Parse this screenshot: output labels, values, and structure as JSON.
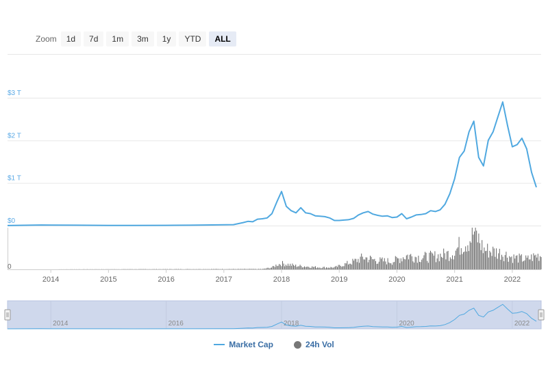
{
  "zoom": {
    "label": "Zoom",
    "buttons": [
      "1d",
      "7d",
      "1m",
      "3m",
      "1y",
      "YTD",
      "ALL"
    ],
    "active": "ALL"
  },
  "colors": {
    "market_cap": "#4fa8e0",
    "volume": "#666666",
    "navigator_fill": "#cfd8ec",
    "axis_label": "#5aa9e6"
  },
  "legend": {
    "market_cap": "Market Cap",
    "volume": "24h Vol"
  },
  "chart_data": {
    "type": "line",
    "y_axis": {
      "ticks": [
        0,
        1,
        2,
        3
      ],
      "tick_labels": [
        "$0",
        "$1 T",
        "$2 T",
        "$3 T"
      ],
      "ylim": [
        0,
        3.1
      ]
    },
    "x_axis": {
      "range": [
        "2013-04",
        "2022-06"
      ],
      "tick_labels": [
        "2014",
        "2015",
        "2016",
        "2017",
        "2018",
        "2019",
        "2020",
        "2021",
        "2022"
      ]
    },
    "volume_axis": {
      "tick_labels": [
        "0"
      ]
    },
    "navigator": {
      "tick_labels": [
        "2014",
        "2016",
        "2018",
        "2020",
        "2022"
      ]
    },
    "series": [
      {
        "name": "Market Cap",
        "unit": "trillion USD",
        "points": [
          [
            "2013-04",
            0.0016
          ],
          [
            "2013-11",
            0.015
          ],
          [
            "2014-01",
            0.012
          ],
          [
            "2014-06",
            0.01
          ],
          [
            "2015-01",
            0.005
          ],
          [
            "2015-06",
            0.004
          ],
          [
            "2016-01",
            0.007
          ],
          [
            "2016-06",
            0.01
          ],
          [
            "2016-12",
            0.017
          ],
          [
            "2017-03",
            0.022
          ],
          [
            "2017-05",
            0.07
          ],
          [
            "2017-06",
            0.1
          ],
          [
            "2017-07",
            0.09
          ],
          [
            "2017-08",
            0.15
          ],
          [
            "2017-09",
            0.16
          ],
          [
            "2017-10",
            0.18
          ],
          [
            "2017-11",
            0.28
          ],
          [
            "2017-12",
            0.55
          ],
          [
            "2018-01",
            0.8
          ],
          [
            "2018-02",
            0.45
          ],
          [
            "2018-03",
            0.35
          ],
          [
            "2018-04",
            0.3
          ],
          [
            "2018-05",
            0.42
          ],
          [
            "2018-06",
            0.3
          ],
          [
            "2018-07",
            0.28
          ],
          [
            "2018-08",
            0.23
          ],
          [
            "2018-09",
            0.22
          ],
          [
            "2018-10",
            0.21
          ],
          [
            "2018-11",
            0.18
          ],
          [
            "2018-12",
            0.12
          ],
          [
            "2019-01",
            0.12
          ],
          [
            "2019-02",
            0.13
          ],
          [
            "2019-03",
            0.14
          ],
          [
            "2019-04",
            0.17
          ],
          [
            "2019-05",
            0.25
          ],
          [
            "2019-06",
            0.3
          ],
          [
            "2019-07",
            0.33
          ],
          [
            "2019-08",
            0.27
          ],
          [
            "2019-09",
            0.24
          ],
          [
            "2019-10",
            0.22
          ],
          [
            "2019-11",
            0.23
          ],
          [
            "2019-12",
            0.19
          ],
          [
            "2020-01",
            0.2
          ],
          [
            "2020-02",
            0.28
          ],
          [
            "2020-03",
            0.16
          ],
          [
            "2020-04",
            0.2
          ],
          [
            "2020-05",
            0.25
          ],
          [
            "2020-06",
            0.26
          ],
          [
            "2020-07",
            0.28
          ],
          [
            "2020-08",
            0.35
          ],
          [
            "2020-09",
            0.33
          ],
          [
            "2020-10",
            0.37
          ],
          [
            "2020-11",
            0.5
          ],
          [
            "2020-12",
            0.75
          ],
          [
            "2021-01",
            1.1
          ],
          [
            "2021-02",
            1.6
          ],
          [
            "2021-03",
            1.75
          ],
          [
            "2021-04",
            2.2
          ],
          [
            "2021-05",
            2.45
          ],
          [
            "2021-06",
            1.6
          ],
          [
            "2021-07",
            1.4
          ],
          [
            "2021-08",
            2.0
          ],
          [
            "2021-09",
            2.2
          ],
          [
            "2021-10",
            2.55
          ],
          [
            "2021-11",
            2.9
          ],
          [
            "2021-12",
            2.35
          ],
          [
            "2022-01",
            1.85
          ],
          [
            "2022-02",
            1.9
          ],
          [
            "2022-03",
            2.05
          ],
          [
            "2022-04",
            1.8
          ],
          [
            "2022-05",
            1.25
          ],
          [
            "2022-06",
            0.9
          ]
        ]
      },
      {
        "name": "24h Vol",
        "unit": "relative",
        "points": [
          [
            "2013-04",
            0
          ],
          [
            "2017-09",
            0.01
          ],
          [
            "2017-11",
            0.05
          ],
          [
            "2017-12",
            0.12
          ],
          [
            "2018-01",
            0.15
          ],
          [
            "2018-04",
            0.09
          ],
          [
            "2018-09",
            0.05
          ],
          [
            "2018-12",
            0.05
          ],
          [
            "2019-04",
            0.2
          ],
          [
            "2019-06",
            0.3
          ],
          [
            "2019-09",
            0.22
          ],
          [
            "2019-12",
            0.2
          ],
          [
            "2020-03",
            0.35
          ],
          [
            "2020-06",
            0.3
          ],
          [
            "2020-09",
            0.33
          ],
          [
            "2020-12",
            0.4
          ],
          [
            "2021-01",
            0.45
          ],
          [
            "2021-02",
            0.6
          ],
          [
            "2021-04",
            0.75
          ],
          [
            "2021-05",
            0.95
          ],
          [
            "2021-07",
            0.5
          ],
          [
            "2021-09",
            0.45
          ],
          [
            "2021-11",
            0.4
          ],
          [
            "2022-01",
            0.3
          ],
          [
            "2022-04",
            0.25
          ],
          [
            "2022-06",
            0.35
          ]
        ]
      }
    ]
  }
}
